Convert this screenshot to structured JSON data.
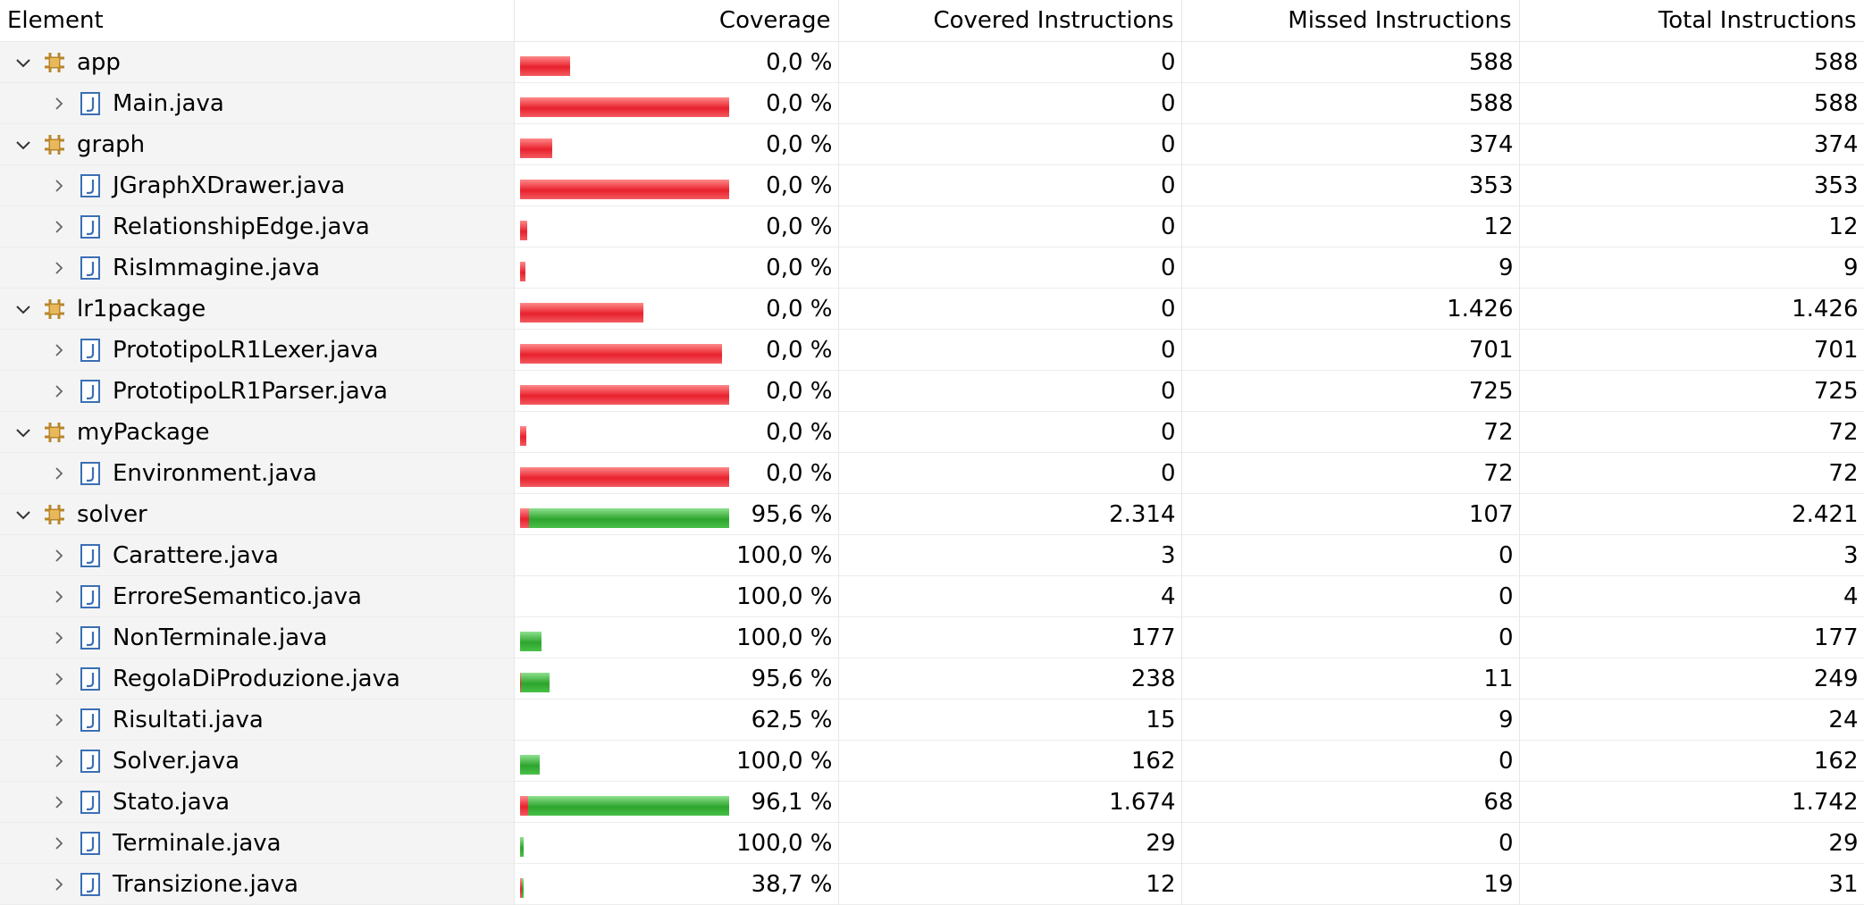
{
  "headers": {
    "element": "Element",
    "coverage": "Coverage",
    "covered": "Covered Instructions",
    "missed": "Missed Instructions",
    "total": "Total Instructions"
  },
  "colors": {
    "missed": "#e8212d",
    "covered": "#2da52d",
    "package_icon": "#b8862a",
    "file_icon": "#3a6fb5"
  },
  "rows": [
    {
      "level": 0,
      "icon": "package-icon",
      "name": "app",
      "coverage": "0,0 %",
      "covered": "0",
      "missed": "588",
      "total": "588",
      "bar_scale": 0.24,
      "covered_ratio": 0.0
    },
    {
      "level": 1,
      "icon": "java-file-icon",
      "name": "Main.java",
      "coverage": "0,0 %",
      "covered": "0",
      "missed": "588",
      "total": "588",
      "bar_scale": 1.0,
      "covered_ratio": 0.0
    },
    {
      "level": 0,
      "icon": "package-icon",
      "name": "graph",
      "coverage": "0,0 %",
      "covered": "0",
      "missed": "374",
      "total": "374",
      "bar_scale": 0.155,
      "covered_ratio": 0.0
    },
    {
      "level": 1,
      "icon": "java-file-icon",
      "name": "JGraphXDrawer.java",
      "coverage": "0,0 %",
      "covered": "0",
      "missed": "353",
      "total": "353",
      "bar_scale": 1.0,
      "covered_ratio": 0.0
    },
    {
      "level": 1,
      "icon": "java-file-icon",
      "name": "RelationshipEdge.java",
      "coverage": "0,0 %",
      "covered": "0",
      "missed": "12",
      "total": "12",
      "bar_scale": 0.034,
      "covered_ratio": 0.0
    },
    {
      "level": 1,
      "icon": "java-file-icon",
      "name": "RisImmagine.java",
      "coverage": "0,0 %",
      "covered": "0",
      "missed": "9",
      "total": "9",
      "bar_scale": 0.025,
      "covered_ratio": 0.0
    },
    {
      "level": 0,
      "icon": "package-icon",
      "name": "lr1package",
      "coverage": "0,0 %",
      "covered": "0",
      "missed": "1.426",
      "total": "1.426",
      "bar_scale": 0.589,
      "covered_ratio": 0.0
    },
    {
      "level": 1,
      "icon": "java-file-icon",
      "name": "PrototipoLR1Lexer.java",
      "coverage": "0,0 %",
      "covered": "0",
      "missed": "701",
      "total": "701",
      "bar_scale": 0.967,
      "covered_ratio": 0.0
    },
    {
      "level": 1,
      "icon": "java-file-icon",
      "name": "PrototipoLR1Parser.java",
      "coverage": "0,0 %",
      "covered": "0",
      "missed": "725",
      "total": "725",
      "bar_scale": 1.0,
      "covered_ratio": 0.0
    },
    {
      "level": 0,
      "icon": "package-icon",
      "name": "myPackage",
      "coverage": "0,0 %",
      "covered": "0",
      "missed": "72",
      "total": "72",
      "bar_scale": 0.03,
      "covered_ratio": 0.0
    },
    {
      "level": 1,
      "icon": "java-file-icon",
      "name": "Environment.java",
      "coverage": "0,0 %",
      "covered": "0",
      "missed": "72",
      "total": "72",
      "bar_scale": 1.0,
      "covered_ratio": 0.0
    },
    {
      "level": 0,
      "icon": "package-icon",
      "name": "solver",
      "coverage": "95,6 %",
      "covered": "2.314",
      "missed": "107",
      "total": "2.421",
      "bar_scale": 1.0,
      "covered_ratio": 0.956
    },
    {
      "level": 1,
      "icon": "java-file-icon",
      "name": "Carattere.java",
      "coverage": "100,0 %",
      "covered": "3",
      "missed": "0",
      "total": "3",
      "bar_scale": 0.0,
      "covered_ratio": 1.0
    },
    {
      "level": 1,
      "icon": "java-file-icon",
      "name": "ErroreSemantico.java",
      "coverage": "100,0 %",
      "covered": "4",
      "missed": "0",
      "total": "4",
      "bar_scale": 0.0,
      "covered_ratio": 1.0
    },
    {
      "level": 1,
      "icon": "java-file-icon",
      "name": "NonTerminale.java",
      "coverage": "100,0 %",
      "covered": "177",
      "missed": "0",
      "total": "177",
      "bar_scale": 0.102,
      "covered_ratio": 1.0
    },
    {
      "level": 1,
      "icon": "java-file-icon",
      "name": "RegolaDiProduzione.java",
      "coverage": "95,6 %",
      "covered": "238",
      "missed": "11",
      "total": "249",
      "bar_scale": 0.143,
      "covered_ratio": 0.956
    },
    {
      "level": 1,
      "icon": "java-file-icon",
      "name": "Risultati.java",
      "coverage": "62,5 %",
      "covered": "15",
      "missed": "9",
      "total": "24",
      "bar_scale": 0.0,
      "covered_ratio": 0.625
    },
    {
      "level": 1,
      "icon": "java-file-icon",
      "name": "Solver.java",
      "coverage": "100,0 %",
      "covered": "162",
      "missed": "0",
      "total": "162",
      "bar_scale": 0.093,
      "covered_ratio": 1.0
    },
    {
      "level": 1,
      "icon": "java-file-icon",
      "name": "Stato.java",
      "coverage": "96,1 %",
      "covered": "1.674",
      "missed": "68",
      "total": "1.742",
      "bar_scale": 1.0,
      "covered_ratio": 0.961
    },
    {
      "level": 1,
      "icon": "java-file-icon",
      "name": "Terminale.java",
      "coverage": "100,0 %",
      "covered": "29",
      "missed": "0",
      "total": "29",
      "bar_scale": 0.017,
      "covered_ratio": 1.0
    },
    {
      "level": 1,
      "icon": "java-file-icon",
      "name": "Transizione.java",
      "coverage": "38,7 %",
      "covered": "12",
      "missed": "19",
      "total": "31",
      "bar_scale": 0.018,
      "covered_ratio": 0.387
    }
  ]
}
